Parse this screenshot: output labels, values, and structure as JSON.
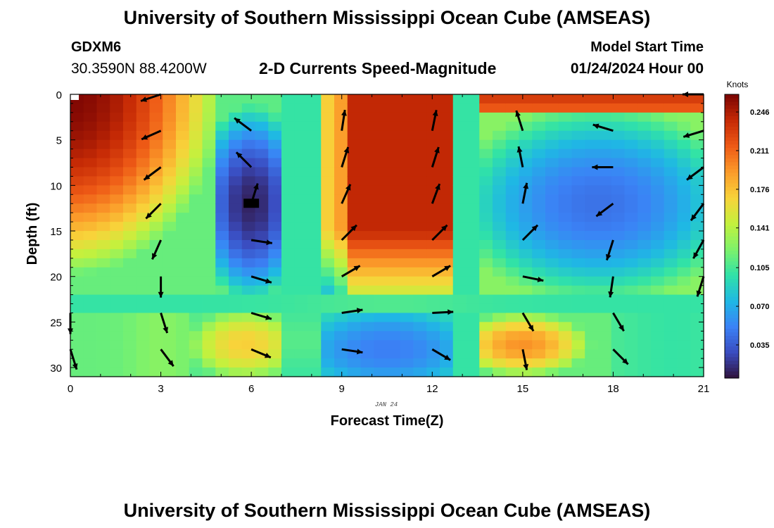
{
  "header": {
    "title": "University of Southern Mississippi Ocean Cube (AMSEAS)",
    "station": "GDXM6",
    "coordinates": "30.3590N  88.4200W",
    "subtitle": "2-D Currents Speed-Magnitude",
    "model_start_label": "Model Start Time",
    "model_start_value": "01/24/2024 Hour 00"
  },
  "footer": {
    "title": "University of Southern Mississippi Ocean Cube (AMSEAS)"
  },
  "chart_data": {
    "type": "heatmap",
    "xlabel": "Forecast Time(Z)",
    "ylabel": "Depth (ft)",
    "date_label": "JAN 24",
    "x_ticks": [
      0,
      3,
      6,
      9,
      12,
      15,
      18,
      21
    ],
    "y_ticks": [
      0,
      5,
      10,
      15,
      20,
      25,
      30
    ],
    "xlim": [
      0,
      21
    ],
    "ylim": [
      0,
      31
    ],
    "colorbar": {
      "label": "Knots",
      "ticks": [
        0.246,
        0.211,
        0.176,
        0.141,
        0.105,
        0.07,
        0.035
      ],
      "tick_labels": [
        "0.246",
        "0.211",
        "0.176",
        "0.141",
        "0.105",
        "0.070",
        "0.035"
      ],
      "range": [
        0.005,
        0.262
      ],
      "colormap": [
        "#30123b",
        "#3a4cc0",
        "#3b82f6",
        "#1fb8e4",
        "#30e2a8",
        "#7ef26a",
        "#c4f13d",
        "#f8d33a",
        "#fb9b2a",
        "#ee5a16",
        "#c62a05",
        "#7a0403"
      ]
    },
    "speed_model": {
      "regions": [
        {
          "name": "upper-left high",
          "x": [
            0,
            4.5
          ],
          "depth": [
            0,
            16
          ],
          "speed": 0.24
        },
        {
          "name": "eddy low 1",
          "x": [
            4.5,
            7.5
          ],
          "depth": [
            0,
            22
          ],
          "speed": 0.02,
          "center": [
            6,
            12
          ]
        },
        {
          "name": "central high",
          "x": [
            8.5,
            13
          ],
          "depth": [
            0,
            21
          ],
          "speed": 0.22
        },
        {
          "name": "eddy low 2",
          "x": [
            13.5,
            21
          ],
          "depth": [
            2,
            21
          ],
          "speed": 0.05,
          "center": [
            17.5,
            12
          ]
        },
        {
          "name": "top-right high",
          "x": [
            13.5,
            21
          ],
          "depth": [
            0,
            3
          ],
          "speed": 0.22
        },
        {
          "name": "lower-mid band",
          "x": [
            0,
            21
          ],
          "depth": [
            22,
            24
          ],
          "speed": 0.1
        },
        {
          "name": "lower-left warm",
          "x": [
            4,
            7
          ],
          "depth": [
            24,
            31
          ],
          "speed": 0.15
        },
        {
          "name": "lower-center low",
          "x": [
            8,
            13
          ],
          "depth": [
            24,
            31
          ],
          "speed": 0.06
        },
        {
          "name": "lower-right warm",
          "x": [
            14,
            16
          ],
          "depth": [
            25,
            30
          ],
          "speed": 0.19
        }
      ]
    },
    "vectors": [
      {
        "x": 3,
        "d": 0,
        "dx": -0.9,
        "dy": 0.3
      },
      {
        "x": 3,
        "d": 4,
        "dx": -0.9,
        "dy": 0.4
      },
      {
        "x": 3,
        "d": 8,
        "dx": -0.8,
        "dy": 0.6
      },
      {
        "x": 3,
        "d": 12,
        "dx": -0.7,
        "dy": 0.7
      },
      {
        "x": 3,
        "d": 16,
        "dx": -0.4,
        "dy": 0.9
      },
      {
        "x": 3,
        "d": 20,
        "dx": 0,
        "dy": 1
      },
      {
        "x": 3,
        "d": 24,
        "dx": 0.3,
        "dy": 0.95
      },
      {
        "x": 3,
        "d": 28,
        "dx": 0.6,
        "dy": 0.8
      },
      {
        "x": 6,
        "d": 4,
        "dx": -0.8,
        "dy": -0.6
      },
      {
        "x": 6,
        "d": 8,
        "dx": -0.7,
        "dy": -0.7
      },
      {
        "x": 6,
        "d": 12,
        "dx": 0.3,
        "dy": -0.95
      },
      {
        "x": 6,
        "d": 16,
        "dx": 1,
        "dy": 0.15
      },
      {
        "x": 6,
        "d": 20,
        "dx": 1,
        "dy": 0.3
      },
      {
        "x": 6,
        "d": 24,
        "dx": 1,
        "dy": 0.3
      },
      {
        "x": 6,
        "d": 28,
        "dx": 0.95,
        "dy": 0.4
      },
      {
        "x": 9,
        "d": 4,
        "dx": 0.15,
        "dy": -1
      },
      {
        "x": 9,
        "d": 8,
        "dx": 0.3,
        "dy": -0.95
      },
      {
        "x": 9,
        "d": 12,
        "dx": 0.4,
        "dy": -0.9
      },
      {
        "x": 9,
        "d": 16,
        "dx": 0.7,
        "dy": -0.7
      },
      {
        "x": 9,
        "d": 20,
        "dx": 0.85,
        "dy": -0.5
      },
      {
        "x": 9,
        "d": 24,
        "dx": 1,
        "dy": -0.15
      },
      {
        "x": 9,
        "d": 28,
        "dx": 1,
        "dy": 0.15
      },
      {
        "x": 12,
        "d": 4,
        "dx": 0.2,
        "dy": -1
      },
      {
        "x": 12,
        "d": 8,
        "dx": 0.3,
        "dy": -0.95
      },
      {
        "x": 12,
        "d": 12,
        "dx": 0.35,
        "dy": -0.95
      },
      {
        "x": 12,
        "d": 16,
        "dx": 0.7,
        "dy": -0.7
      },
      {
        "x": 12,
        "d": 20,
        "dx": 0.85,
        "dy": -0.5
      },
      {
        "x": 12,
        "d": 24,
        "dx": 1,
        "dy": -0.05
      },
      {
        "x": 12,
        "d": 28,
        "dx": 0.85,
        "dy": 0.5
      },
      {
        "x": 15,
        "d": 4,
        "dx": -0.3,
        "dy": -0.95
      },
      {
        "x": 15,
        "d": 8,
        "dx": -0.2,
        "dy": -1
      },
      {
        "x": 15,
        "d": 12,
        "dx": 0.2,
        "dy": -1
      },
      {
        "x": 15,
        "d": 16,
        "dx": 0.7,
        "dy": -0.7
      },
      {
        "x": 15,
        "d": 20,
        "dx": 1,
        "dy": 0.2
      },
      {
        "x": 15,
        "d": 24,
        "dx": 0.5,
        "dy": 0.85
      },
      {
        "x": 15,
        "d": 28,
        "dx": 0.2,
        "dy": 1
      },
      {
        "x": 18,
        "d": 4,
        "dx": -1,
        "dy": -0.3
      },
      {
        "x": 18,
        "d": 8,
        "dx": -1,
        "dy": 0
      },
      {
        "x": 18,
        "d": 12,
        "dx": -0.8,
        "dy": 0.6
      },
      {
        "x": 18,
        "d": 16,
        "dx": -0.3,
        "dy": 0.95
      },
      {
        "x": 18,
        "d": 20,
        "dx": -0.15,
        "dy": 1
      },
      {
        "x": 18,
        "d": 24,
        "dx": 0.5,
        "dy": 0.85
      },
      {
        "x": 18,
        "d": 28,
        "dx": 0.7,
        "dy": 0.7
      },
      {
        "x": 21,
        "d": 0,
        "dx": -1,
        "dy": 0
      },
      {
        "x": 21,
        "d": 4,
        "dx": -1,
        "dy": 0.3
      },
      {
        "x": 21,
        "d": 8,
        "dx": -0.8,
        "dy": 0.6
      },
      {
        "x": 21,
        "d": 12,
        "dx": -0.6,
        "dy": 0.8
      },
      {
        "x": 21,
        "d": 16,
        "dx": -0.5,
        "dy": 0.9
      },
      {
        "x": 21,
        "d": 20,
        "dx": -0.3,
        "dy": 0.95
      },
      {
        "x": 0,
        "d": 24,
        "dx": 0,
        "dy": 1
      },
      {
        "x": 0,
        "d": 28,
        "dx": 0.3,
        "dy": 0.95
      }
    ],
    "station_marker": {
      "x": 6,
      "d": 12
    }
  }
}
